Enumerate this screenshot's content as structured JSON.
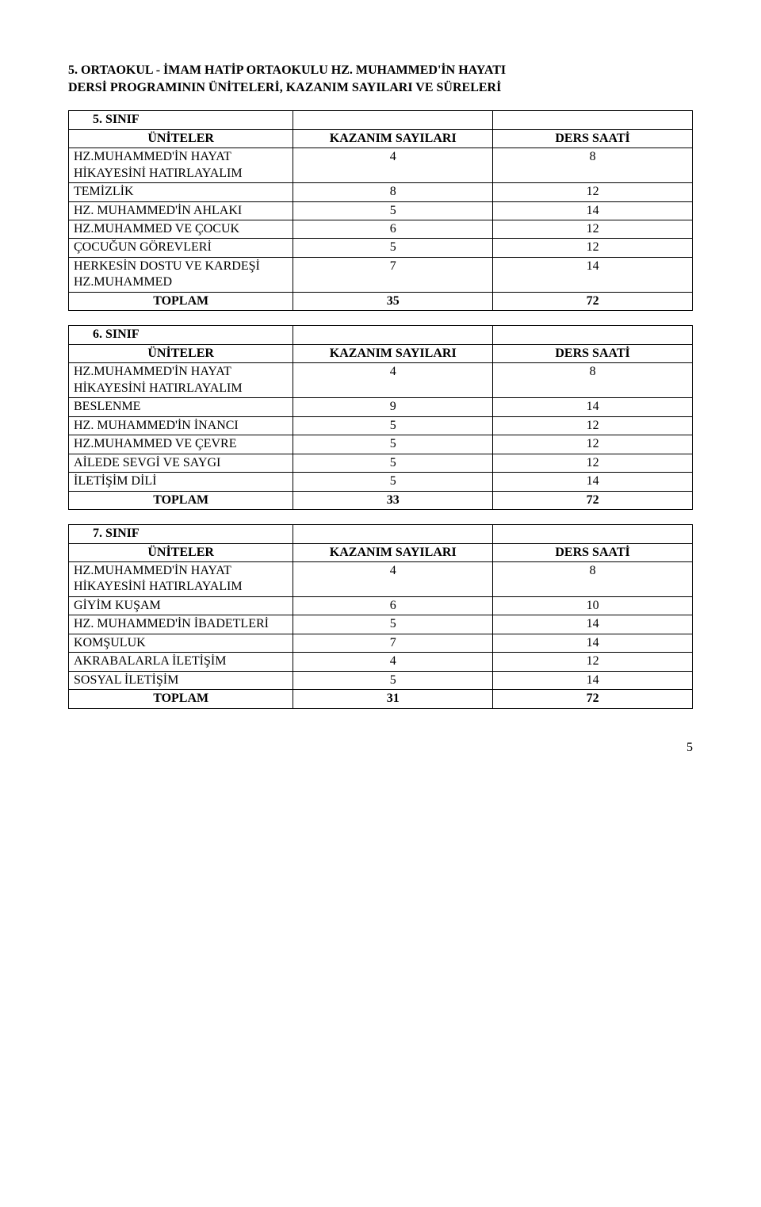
{
  "heading_line1": "5. ORTAOKUL - İMAM HATİP ORTAOKULU HZ. MUHAMMED'İN HAYATI",
  "heading_line2": "DERSİ PROGRAMININ ÜNİTELERİ, KAZANIM SAYILARI VE SÜRELERİ",
  "col_headers": {
    "uniteler": "ÜNİTELER",
    "kazanim": "KAZANIM SAYILARI",
    "ders": "DERS SAATİ"
  },
  "total_label": "TOPLAM",
  "grades": {
    "g5": {
      "label": "5. SINIF",
      "rows": [
        {
          "label": "HZ.MUHAMMED'İN HAYAT HİKAYESİNİ HATIRLAYALIM",
          "ks": "4",
          "ds": "8"
        },
        {
          "label": "TEMİZLİK",
          "ks": "8",
          "ds": "12"
        },
        {
          "label": "HZ. MUHAMMED'İN AHLAKI",
          "ks": "5",
          "ds": "14"
        },
        {
          "label": "HZ.MUHAMMED VE ÇOCUK",
          "ks": "6",
          "ds": "12"
        },
        {
          "label": "ÇOCUĞUN GÖREVLERİ",
          "ks": "5",
          "ds": "12"
        },
        {
          "label": "HERKESİN DOSTU VE KARDEŞİ HZ.MUHAMMED",
          "ks": "7",
          "ds": "14"
        }
      ],
      "total_ks": "35",
      "total_ds": "72"
    },
    "g6": {
      "label": "6. SINIF",
      "rows": [
        {
          "label": "HZ.MUHAMMED'İN HAYAT HİKAYESİNİ HATIRLAYALIM",
          "ks": "4",
          "ds": "8"
        },
        {
          "label": "BESLENME",
          "ks": "9",
          "ds": "14"
        },
        {
          "label": "HZ. MUHAMMED'İN İNANCI",
          "ks": "5",
          "ds": "12"
        },
        {
          "label": "HZ.MUHAMMED VE ÇEVRE",
          "ks": "5",
          "ds": "12"
        },
        {
          "label": "AİLEDE SEVGİ VE SAYGI",
          "ks": "5",
          "ds": "12"
        },
        {
          "label": "İLETİŞİM DİLİ",
          "ks": "5",
          "ds": "14"
        }
      ],
      "total_ks": "33",
      "total_ds": "72"
    },
    "g7": {
      "label": "7. SINIF",
      "rows": [
        {
          "label": "HZ.MUHAMMED'İN HAYAT HİKAYESİNİ HATIRLAYALIM",
          "ks": "4",
          "ds": "8"
        },
        {
          "label": "GİYİM KUŞAM",
          "ks": "6",
          "ds": "10"
        },
        {
          "label": "HZ. MUHAMMED'İN İBADETLERİ",
          "ks": "5",
          "ds": "14"
        },
        {
          "label": "KOMŞULUK",
          "ks": "7",
          "ds": "14"
        },
        {
          "label": "AKRABALARLA İLETİŞİM",
          "ks": "4",
          "ds": "12"
        },
        {
          "label": "SOSYAL İLETİŞİM",
          "ks": "5",
          "ds": "14"
        }
      ],
      "total_ks": "31",
      "total_ds": "72"
    }
  },
  "page_number": "5"
}
